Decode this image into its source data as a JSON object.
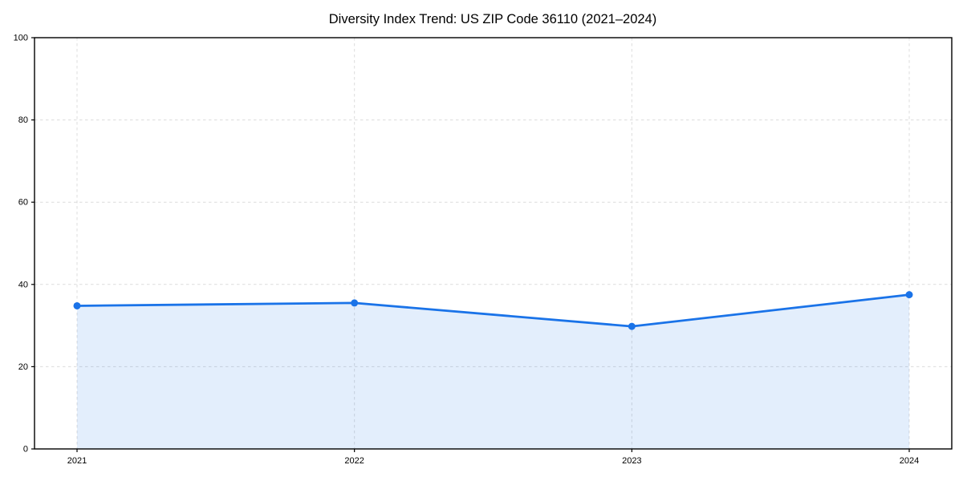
{
  "page": {
    "background": "#ffffff"
  },
  "chart_data": {
    "type": "area",
    "title": "Diversity Index Trend: US ZIP Code 36110 (2021–2024)",
    "x": [
      "2021",
      "2022",
      "2023",
      "2024"
    ],
    "values": [
      34.8,
      35.5,
      29.8,
      37.5
    ],
    "xlabel": "",
    "ylabel": "",
    "ylim": [
      0,
      100
    ],
    "yticks": [
      0,
      20,
      40,
      60,
      80,
      100
    ],
    "grid": "dashed-both-axes",
    "legend_position": "none",
    "marker": "circle",
    "colors": {
      "line": "#1a73e8",
      "marker": "#1a73e8",
      "fill": "rgba(26,115,232,0.12)",
      "grid": "#dcdcdc",
      "axis": "#000000",
      "text": "#000000",
      "background": "#ffffff"
    }
  }
}
